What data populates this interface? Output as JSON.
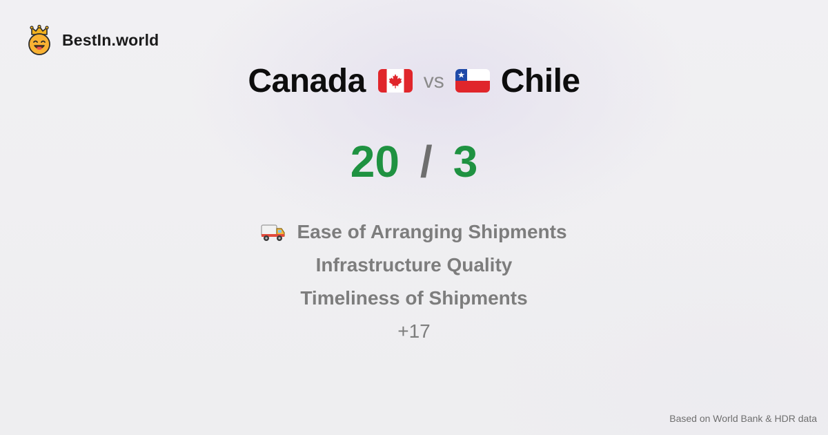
{
  "brand": {
    "name": "BestIn.world",
    "logo_icon": "smiling-face-with-crown-icon"
  },
  "comparison": {
    "left_country": "Canada",
    "left_flag": "canada-flag-icon",
    "separator": "vs",
    "right_country": "Chile",
    "right_flag": "chile-flag-icon"
  },
  "score": {
    "left": "20",
    "divider": "/",
    "right": "3"
  },
  "metrics": {
    "items": [
      {
        "label": "Ease of Arranging Shipments",
        "icon": "delivery-truck-icon"
      },
      {
        "label": "Infrastructure Quality"
      },
      {
        "label": "Timeliness of Shipments"
      }
    ],
    "more_label": "+17"
  },
  "footer": {
    "source_text": "Based on World Bank & HDR data"
  },
  "colors": {
    "score_green": "#1f9241",
    "muted_gray": "#7d7d7d",
    "title_black": "#0d0d0d",
    "background": "#f0eff2"
  }
}
